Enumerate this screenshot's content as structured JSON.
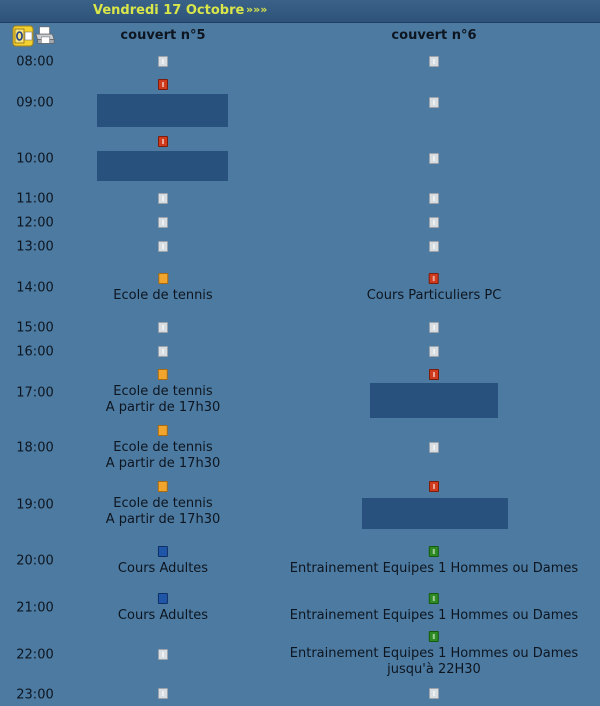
{
  "header": {
    "date": "Vendredi 17 Octobre",
    "next_label": "»»»"
  },
  "icons": {
    "outlook": "outlook-icon",
    "print": "printer-icon"
  },
  "columns": [
    "couvert n°5",
    "couvert n°6"
  ],
  "times": [
    "08:00",
    "09:00",
    "10:00",
    "11:00",
    "12:00",
    "13:00",
    "14:00",
    "15:00",
    "16:00",
    "17:00",
    "18:00",
    "19:00",
    "20:00",
    "21:00",
    "22:00",
    "23:00"
  ],
  "court5": {
    "h08": {
      "status": "free"
    },
    "h09": {
      "status": "booked"
    },
    "h10": {
      "status": "booked"
    },
    "h11": {
      "status": "free"
    },
    "h12": {
      "status": "free"
    },
    "h13": {
      "status": "free"
    },
    "h14": {
      "status": "school",
      "label": "Ecole de tennis"
    },
    "h15": {
      "status": "free"
    },
    "h16": {
      "status": "free"
    },
    "h17": {
      "status": "school",
      "label": "Ecole de tennis",
      "label2": "A partir de 17h30"
    },
    "h18": {
      "status": "school",
      "label": "Ecole de tennis",
      "label2": "A partir de 17h30"
    },
    "h19": {
      "status": "school",
      "label": "Ecole de tennis",
      "label2": "A partir de 17h30"
    },
    "h20": {
      "status": "adult",
      "label": "Cours Adultes"
    },
    "h21": {
      "status": "adult",
      "label": "Cours Adultes"
    },
    "h22": {
      "status": "free"
    },
    "h23": {
      "status": "free"
    }
  },
  "court6": {
    "h08": {
      "status": "free"
    },
    "h09": {
      "status": "free"
    },
    "h10": {
      "status": "free"
    },
    "h11": {
      "status": "free"
    },
    "h12": {
      "status": "free"
    },
    "h13": {
      "status": "free"
    },
    "h14": {
      "status": "booked",
      "label": "Cours Particuliers PC"
    },
    "h15": {
      "status": "free"
    },
    "h16": {
      "status": "free"
    },
    "h17": {
      "status": "booked"
    },
    "h18": {
      "status": "free"
    },
    "h19": {
      "status": "booked"
    },
    "h20": {
      "status": "team",
      "label": "Entrainement Equipes 1 Hommes ou Dames"
    },
    "h21": {
      "status": "team",
      "label": "Entrainement Equipes 1 Hommes ou Dames"
    },
    "h22": {
      "status": "team",
      "label": "Entrainement Equipes 1 Hommes ou Dames",
      "label2": "jusqu'à 22H30"
    },
    "h23": {
      "status": "free"
    }
  },
  "colors": {
    "background": "#4d7aa1",
    "header_text": "#d9e64a",
    "free": "#d8dde2",
    "booked": "#cf3b1c",
    "school": "#f2a52c",
    "adult": "#1f56a8",
    "team": "#2e8a22",
    "hidden_block": "#29517d"
  }
}
